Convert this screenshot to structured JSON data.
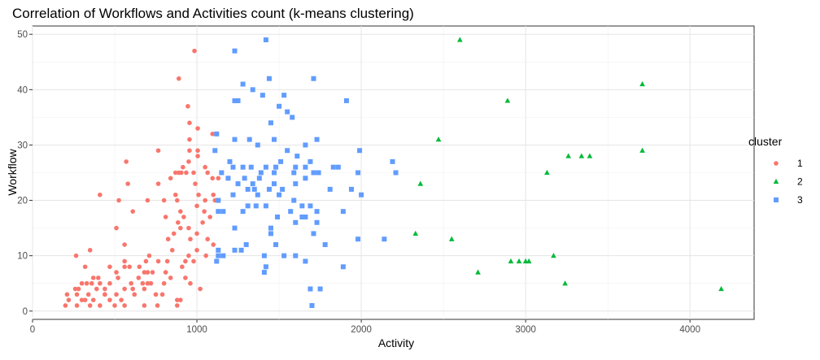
{
  "chart_data": {
    "type": "scatter",
    "title": "Correlation of Workflows and Activities count (k-means clustering)",
    "xlabel": "Activity",
    "ylabel": "Workflow",
    "xlim": [
      0,
      4390
    ],
    "ylim": [
      -1.5,
      51.5
    ],
    "x_ticks": [
      0,
      1000,
      2000,
      3000,
      4000
    ],
    "x_tick_labels": [
      "0",
      "1000",
      "2000",
      "3000",
      "4000"
    ],
    "y_ticks": [
      0,
      10,
      20,
      30,
      40,
      50
    ],
    "y_tick_labels": [
      "0",
      "10",
      "20",
      "30",
      "40",
      "50"
    ],
    "grid": true,
    "legend_position": "right",
    "legend_title": "cluster",
    "series": [
      {
        "name": "1",
        "color": "#F8766D",
        "marker": "circle",
        "points": [
          [
            985,
            47
          ],
          [
            890,
            42
          ],
          [
            945,
            37
          ],
          [
            1095,
            32
          ],
          [
            955,
            34
          ],
          [
            1005,
            33
          ],
          [
            955,
            31
          ],
          [
            1005,
            29
          ],
          [
            765,
            29
          ],
          [
            955,
            29
          ],
          [
            1005,
            28
          ],
          [
            570,
            27
          ],
          [
            950,
            27
          ],
          [
            915,
            26
          ],
          [
            1050,
            26
          ],
          [
            870,
            25
          ],
          [
            890,
            25
          ],
          [
            905,
            25
          ],
          [
            935,
            25
          ],
          [
            980,
            25
          ],
          [
            1065,
            25
          ],
          [
            840,
            24
          ],
          [
            1095,
            24
          ],
          [
            1130,
            24
          ],
          [
            580,
            23
          ],
          [
            765,
            23
          ],
          [
            990,
            23
          ],
          [
            410,
            21
          ],
          [
            1010,
            21
          ],
          [
            870,
            21
          ],
          [
            1100,
            21
          ],
          [
            525,
            20
          ],
          [
            700,
            20
          ],
          [
            800,
            20
          ],
          [
            880,
            20
          ],
          [
            1050,
            20
          ],
          [
            1110,
            20
          ],
          [
            1000,
            19
          ],
          [
            900,
            18
          ],
          [
            1045,
            18
          ],
          [
            610,
            18
          ],
          [
            1080,
            17
          ],
          [
            810,
            17
          ],
          [
            920,
            17
          ],
          [
            885,
            16
          ],
          [
            1035,
            16
          ],
          [
            510,
            15
          ],
          [
            900,
            15
          ],
          [
            950,
            15
          ],
          [
            860,
            14
          ],
          [
            1000,
            14
          ],
          [
            1065,
            13
          ],
          [
            825,
            13
          ],
          [
            960,
            13
          ],
          [
            1100,
            12
          ],
          [
            560,
            12
          ],
          [
            850,
            11
          ],
          [
            1000,
            11
          ],
          [
            350,
            11
          ],
          [
            710,
            10
          ],
          [
            950,
            10
          ],
          [
            1055,
            10
          ],
          [
            265,
            10
          ],
          [
            560,
            9
          ],
          [
            690,
            9
          ],
          [
            765,
            9
          ],
          [
            820,
            9
          ],
          [
            930,
            9
          ],
          [
            980,
            9
          ],
          [
            470,
            8
          ],
          [
            560,
            8
          ],
          [
            590,
            8
          ],
          [
            650,
            8
          ],
          [
            910,
            8
          ],
          [
            320,
            8
          ],
          [
            510,
            7
          ],
          [
            680,
            7
          ],
          [
            700,
            7
          ],
          [
            730,
            7
          ],
          [
            810,
            7
          ],
          [
            370,
            6
          ],
          [
            400,
            6
          ],
          [
            520,
            6
          ],
          [
            645,
            6
          ],
          [
            840,
            6
          ],
          [
            930,
            6
          ],
          [
            330,
            5
          ],
          [
            360,
            5
          ],
          [
            470,
            5
          ],
          [
            600,
            5
          ],
          [
            670,
            5
          ],
          [
            700,
            5
          ],
          [
            720,
            5
          ],
          [
            800,
            5
          ],
          [
            960,
            5
          ],
          [
            300,
            5
          ],
          [
            410,
            5
          ],
          [
            260,
            4
          ],
          [
            390,
            4
          ],
          [
            440,
            4
          ],
          [
            560,
            4
          ],
          [
            610,
            4
          ],
          [
            680,
            4
          ],
          [
            1020,
            4
          ],
          [
            280,
            4
          ],
          [
            210,
            3
          ],
          [
            270,
            3
          ],
          [
            340,
            3
          ],
          [
            440,
            3
          ],
          [
            510,
            3
          ],
          [
            620,
            3
          ],
          [
            750,
            3
          ],
          [
            790,
            3
          ],
          [
            440,
            3
          ],
          [
            220,
            2
          ],
          [
            300,
            2
          ],
          [
            320,
            2
          ],
          [
            370,
            2
          ],
          [
            470,
            2
          ],
          [
            540,
            2
          ],
          [
            880,
            2
          ],
          [
            900,
            2
          ],
          [
            200,
            1
          ],
          [
            270,
            1
          ],
          [
            350,
            1
          ],
          [
            410,
            1
          ],
          [
            500,
            1
          ],
          [
            560,
            1
          ],
          [
            680,
            1
          ],
          [
            760,
            1
          ],
          [
            880,
            1
          ]
        ]
      },
      {
        "name": "2",
        "color": "#00BA38",
        "marker": "triangle",
        "points": [
          [
            2600,
            49
          ],
          [
            3710,
            41
          ],
          [
            2890,
            38
          ],
          [
            2470,
            31
          ],
          [
            3710,
            29
          ],
          [
            3260,
            28
          ],
          [
            3340,
            28
          ],
          [
            3390,
            28
          ],
          [
            3130,
            25
          ],
          [
            2360,
            23
          ],
          [
            2330,
            14
          ],
          [
            2550,
            13
          ],
          [
            3170,
            10
          ],
          [
            2910,
            9
          ],
          [
            2960,
            9
          ],
          [
            3000,
            9
          ],
          [
            3020,
            9
          ],
          [
            2710,
            7
          ],
          [
            3240,
            5
          ],
          [
            4190,
            4
          ]
        ]
      },
      {
        "name": "3",
        "color": "#619CFF",
        "marker": "square",
        "points": [
          [
            1420,
            49
          ],
          [
            1230,
            47
          ],
          [
            1710,
            42
          ],
          [
            1440,
            42
          ],
          [
            1280,
            41
          ],
          [
            1340,
            40
          ],
          [
            1400,
            39
          ],
          [
            1530,
            39
          ],
          [
            1230,
            38
          ],
          [
            1250,
            38
          ],
          [
            1910,
            38
          ],
          [
            1500,
            37
          ],
          [
            1550,
            36
          ],
          [
            1580,
            35
          ],
          [
            1450,
            34
          ],
          [
            1120,
            32
          ],
          [
            1730,
            31
          ],
          [
            1230,
            31
          ],
          [
            1320,
            31
          ],
          [
            1470,
            31
          ],
          [
            1370,
            30
          ],
          [
            1660,
            30
          ],
          [
            1110,
            29
          ],
          [
            1550,
            29
          ],
          [
            1990,
            29
          ],
          [
            1610,
            28
          ],
          [
            1200,
            27
          ],
          [
            1510,
            27
          ],
          [
            1690,
            27
          ],
          [
            2190,
            27
          ],
          [
            1220,
            26
          ],
          [
            1280,
            26
          ],
          [
            1330,
            26
          ],
          [
            1420,
            26
          ],
          [
            1480,
            26
          ],
          [
            1600,
            26
          ],
          [
            1660,
            26
          ],
          [
            1830,
            26
          ],
          [
            1860,
            26
          ],
          [
            1150,
            25
          ],
          [
            1390,
            25
          ],
          [
            1470,
            25
          ],
          [
            1590,
            25
          ],
          [
            1710,
            25
          ],
          [
            1740,
            25
          ],
          [
            1980,
            25
          ],
          [
            2210,
            25
          ],
          [
            1190,
            24
          ],
          [
            1290,
            24
          ],
          [
            1380,
            24
          ],
          [
            1660,
            24
          ],
          [
            1600,
            23
          ],
          [
            1250,
            23
          ],
          [
            1340,
            23
          ],
          [
            1470,
            23
          ],
          [
            1310,
            22
          ],
          [
            1440,
            22
          ],
          [
            1520,
            22
          ],
          [
            1350,
            22
          ],
          [
            1810,
            22
          ],
          [
            1940,
            22
          ],
          [
            1220,
            21
          ],
          [
            1370,
            21
          ],
          [
            1500,
            21
          ],
          [
            2000,
            21
          ],
          [
            1130,
            20
          ],
          [
            1590,
            20
          ],
          [
            1310,
            19
          ],
          [
            1360,
            19
          ],
          [
            1420,
            19
          ],
          [
            1640,
            19
          ],
          [
            1690,
            19
          ],
          [
            1130,
            18
          ],
          [
            1280,
            18
          ],
          [
            1570,
            18
          ],
          [
            1730,
            18
          ],
          [
            1890,
            18
          ],
          [
            1160,
            18
          ],
          [
            1640,
            17
          ],
          [
            1490,
            17
          ],
          [
            1660,
            17
          ],
          [
            1600,
            16
          ],
          [
            1730,
            16
          ],
          [
            1450,
            15
          ],
          [
            1230,
            15
          ],
          [
            1130,
            11
          ],
          [
            1230,
            11
          ],
          [
            1450,
            14
          ],
          [
            1710,
            14
          ],
          [
            1780,
            12
          ],
          [
            1980,
            13
          ],
          [
            2140,
            13
          ],
          [
            1270,
            11
          ],
          [
            1300,
            12
          ],
          [
            1480,
            12
          ],
          [
            1600,
            10
          ],
          [
            1130,
            10
          ],
          [
            1160,
            10
          ],
          [
            1410,
            10
          ],
          [
            1530,
            10
          ],
          [
            1120,
            9
          ],
          [
            1660,
            9
          ],
          [
            1890,
            8
          ],
          [
            1420,
            8
          ],
          [
            1410,
            7
          ],
          [
            1690,
            4
          ],
          [
            1750,
            4
          ],
          [
            1700,
            1
          ]
        ]
      }
    ]
  }
}
